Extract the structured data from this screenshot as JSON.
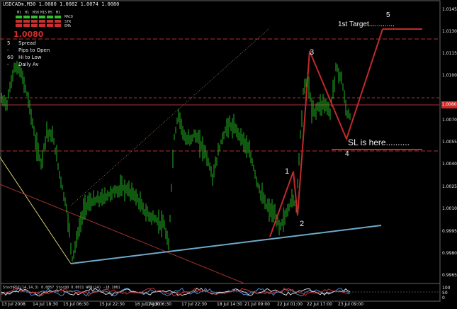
{
  "window": {
    "title": "USDCADm,M30",
    "ohlc": "1.0080 1.0082 1.0074 1.0080"
  },
  "overlay": {
    "timeframes": [
      "M1",
      "H1",
      "M30",
      "M15",
      "M5",
      "M1"
    ],
    "indicators": [
      "MACD",
      "STR",
      "EMA"
    ],
    "big_price": "1.0080",
    "rows": [
      {
        "k": "5",
        "label": "Spread"
      },
      {
        "k": "-",
        "label": "Pips to Open"
      },
      {
        "k": "60",
        "label": "Hi to Low"
      },
      {
        "k": "-",
        "label": "Daily Av"
      }
    ]
  },
  "annotations": {
    "target_label": "1st Target.............",
    "sl_label": "SL is here..........",
    "wave_1": "1",
    "wave_2": "2",
    "wave_3": "3",
    "wave_4": "4",
    "wave_5": "5"
  },
  "price_axis": [
    "1.0145",
    "1.0130",
    "1.0115",
    "1.0100",
    "1.0085",
    "1.0070",
    "1.0055",
    "1.0040",
    "1.0025",
    "1.0010",
    "0.9995",
    "0.9980",
    "0.9965"
  ],
  "current_price": "1.0080",
  "time_axis": [
    "13 Jul 2008",
    "14 Jul 18:30",
    "15 Jul 06:30",
    "15 Jul 22:30",
    "16 Jul 14:30",
    "17 Jul 06:30",
    "17 Jul 22:30",
    "18 Jul 14:30",
    "21 Jul 09:00",
    "22 Jul 01:00",
    "22 Jul 17:00",
    "23 Jul 09:00"
  ],
  "oscillator_text": "StochRSI(14,14,3) 0.0057 StochD 0.0011 WPR(14) -18.1061",
  "oscillator_axis": [
    "100",
    "50",
    "0"
  ],
  "colors": {
    "candles": "#22b022",
    "levels": "#b03030",
    "trendline": "#6fa8c8",
    "wave": "#c02a2a"
  }
}
